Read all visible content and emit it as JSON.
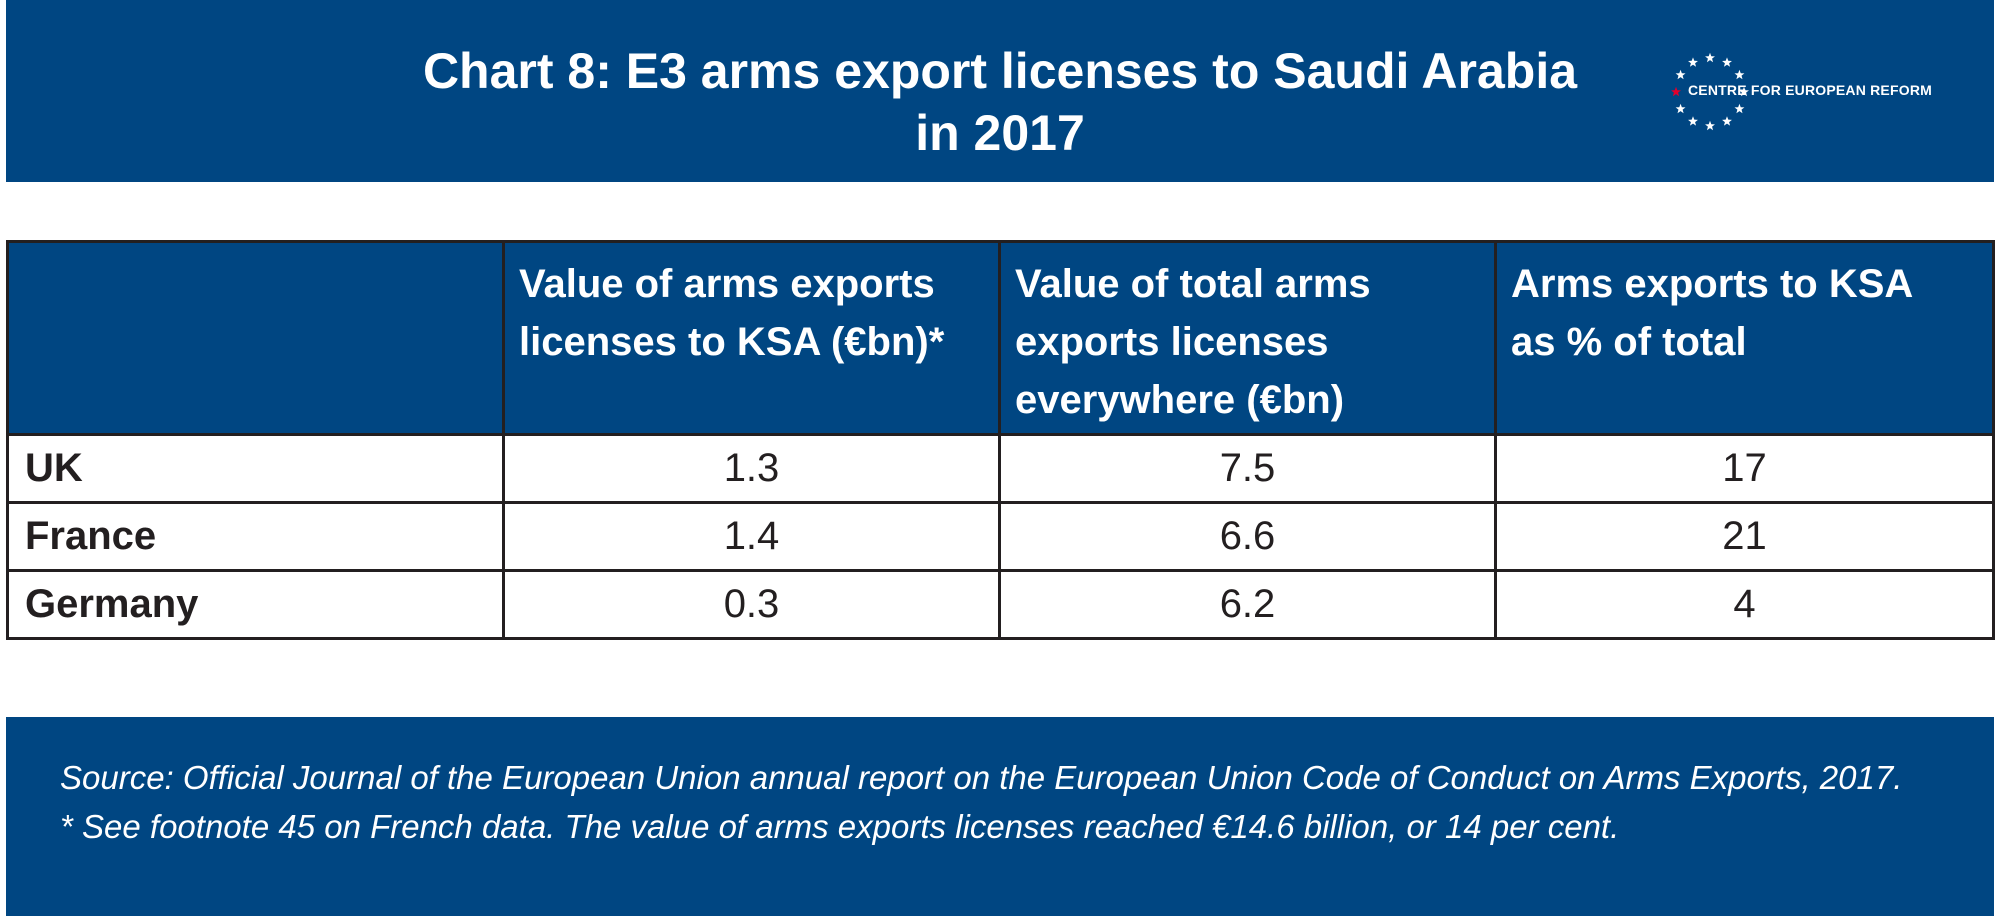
{
  "title": {
    "line1": "Chart 8: E3 arms export licenses to Saudi Arabia",
    "line2": "in 2017"
  },
  "logo": {
    "text": "CENTRE FOR EUROPEAN REFORM",
    "icon": "ring-of-stars-icon",
    "star_color": "#ffffff",
    "accent_star_color": "#e4002b"
  },
  "colors": {
    "brand_blue": "#004682",
    "text_dark": "#231f20"
  },
  "chart_data": {
    "type": "table",
    "title": "Chart 8: E3 arms export licenses to Saudi Arabia in 2017",
    "columns": [
      "",
      "Value of arms exports licenses to KSA (€bn)*",
      "Value of total arms exports licenses everywhere (€bn)",
      "Arms exports to KSA as % of total"
    ],
    "header_lines": [
      [],
      [
        "Value of arms exports",
        "licenses to KSA (€bn)*"
      ],
      [
        "Value of total arms",
        "exports licenses",
        "everywhere (€bn)"
      ],
      [
        "Arms exports to KSA",
        "as % of total"
      ]
    ],
    "rows": [
      [
        "UK",
        "1.3",
        "7.5",
        "17"
      ],
      [
        "France",
        "1.4",
        "6.6",
        "21"
      ],
      [
        "Germany",
        "0.3",
        "6.2",
        "4"
      ]
    ]
  },
  "footer": {
    "source": "Source: Official Journal of the European Union annual report on the European Union Code of Conduct on Arms Exports, 2017.",
    "note": "* See footnote 45 on French data. The value of arms exports licenses reached €14.6 billion, or 14 per cent."
  }
}
